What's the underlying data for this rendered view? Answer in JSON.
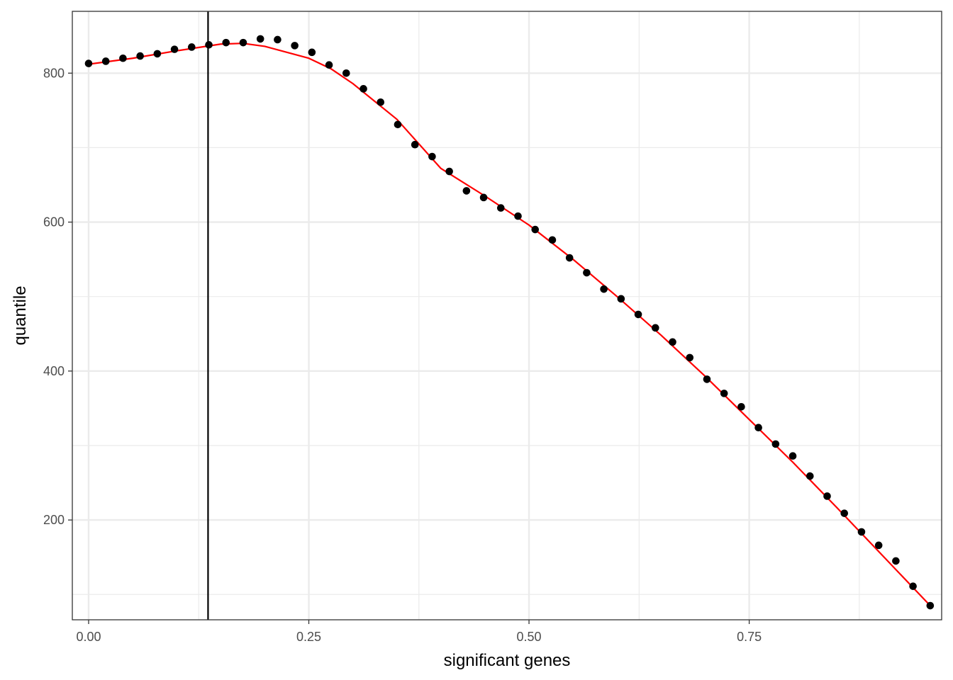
{
  "chart_data": {
    "type": "scatter",
    "title": "",
    "xlabel": "significant genes",
    "ylabel": "quantile",
    "xlim": [
      -0.0185,
      0.9685
    ],
    "ylim": [
      66,
      883
    ],
    "x_ticks": [
      0.0,
      0.25,
      0.5,
      0.75
    ],
    "x_tick_labels": [
      "0.00",
      "0.25",
      "0.50",
      "0.75"
    ],
    "x_minor_ticks": [
      0.125,
      0.375,
      0.625,
      0.875
    ],
    "y_ticks": [
      200,
      400,
      600,
      800
    ],
    "y_tick_labels": [
      "200",
      "400",
      "600",
      "800"
    ],
    "y_minor_ticks": [
      100,
      300,
      500,
      700
    ],
    "grid": true,
    "legend": "none",
    "vline_x": 0.1356,
    "colors": {
      "points": "#000000",
      "smooth": "#ff0000",
      "vline": "#000000",
      "grid": "#ebebeb",
      "panel_border": "#333333"
    },
    "series": [
      {
        "type": "scatter",
        "x": [
          0.0,
          0.0195,
          0.039,
          0.0585,
          0.078,
          0.0975,
          0.117,
          0.1365,
          0.156,
          0.1755,
          0.195,
          0.2145,
          0.234,
          0.2535,
          0.273,
          0.2925,
          0.312,
          0.3315,
          0.351,
          0.3705,
          0.39,
          0.4095,
          0.429,
          0.4485,
          0.468,
          0.4875,
          0.507,
          0.5265,
          0.546,
          0.5655,
          0.585,
          0.6045,
          0.624,
          0.6435,
          0.663,
          0.6825,
          0.702,
          0.7215,
          0.741,
          0.7605,
          0.78,
          0.7995,
          0.819,
          0.8385,
          0.858,
          0.8775,
          0.897,
          0.9165,
          0.936,
          0.9555
        ],
        "y": [
          813,
          816,
          820,
          823,
          826,
          832,
          835,
          838,
          841,
          841,
          846,
          845,
          837,
          828,
          811,
          800,
          779,
          761,
          731,
          704,
          688,
          668,
          642,
          633,
          619,
          608,
          590,
          576,
          552,
          532,
          510,
          497,
          476,
          458,
          439,
          418,
          389,
          370,
          352,
          324,
          302,
          286,
          259,
          232,
          209,
          184,
          166,
          145,
          111,
          85
        ]
      },
      {
        "type": "line",
        "x": [
          0.0,
          0.05,
          0.1,
          0.15,
          0.175,
          0.2,
          0.25,
          0.275,
          0.3,
          0.35,
          0.4,
          0.45,
          0.5,
          0.55,
          0.6,
          0.65,
          0.7,
          0.75,
          0.8,
          0.85,
          0.9,
          0.9555
        ],
        "y": [
          812,
          820,
          830,
          839,
          840,
          836,
          820,
          806,
          786,
          738,
          672,
          635,
          596,
          550,
          500,
          448,
          393,
          335,
          277,
          216,
          154,
          85
        ]
      }
    ]
  }
}
